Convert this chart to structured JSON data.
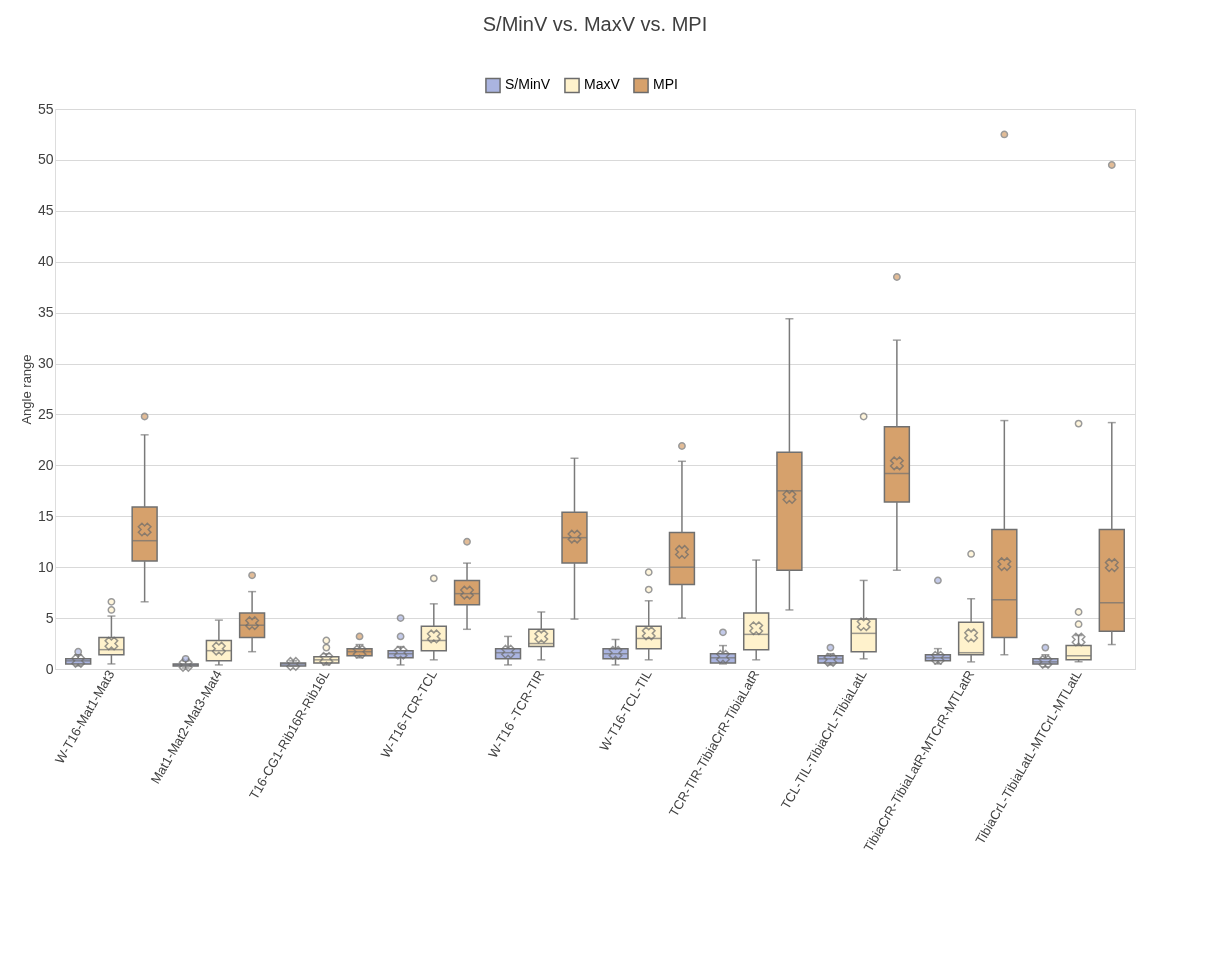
{
  "chart_data": {
    "type": "box",
    "title": "S/MinV vs. MaxV vs. MPI",
    "ylabel": "Angle range",
    "legend": "top",
    "grid": "y",
    "ylim": [
      0,
      55
    ],
    "yticks": [
      0,
      5,
      10,
      15,
      20,
      25,
      30,
      35,
      40,
      45,
      50,
      55
    ],
    "categories": [
      "W-T16-Mat1-Mat3",
      "Mat1-Mat2-Mat3-Mat4",
      "T16-CG1-Rib16R-Rib16L",
      "W-T16-TCR-TCL",
      "W-T16 -TCR-TIR",
      "W-T16-TCL-TIL",
      "TCR-TIR-TibiaCrR-TibiaLatR",
      "TCL-TIL-TibiaCrL-TibiaLatL",
      "TibiaCrR-TibiaLatR-MTCrR-MTLatR",
      "TibiaCrL-TibiaLatL-MTCrL-MTLatL"
    ],
    "series": [
      {
        "name": "S/MinV",
        "color": "#aab4e0",
        "boxes": [
          {
            "low": 0.3,
            "q1": 0.5,
            "median": 0.8,
            "q3": 1.0,
            "high": 1.4,
            "mean": 0.8,
            "outliers": [
              1.7
            ]
          },
          {
            "low": 0.1,
            "q1": 0.3,
            "median": 0.4,
            "q3": 0.5,
            "high": 0.8,
            "mean": 0.4,
            "outliers": [
              1.0
            ]
          },
          {
            "low": 0.3,
            "q1": 0.3,
            "median": 0.5,
            "q3": 0.6,
            "high": 0.8,
            "mean": 0.5
          },
          {
            "low": 0.4,
            "q1": 1.1,
            "median": 1.5,
            "q3": 1.8,
            "high": 2.2,
            "mean": 1.6,
            "outliers": [
              3.2,
              5.0
            ]
          },
          {
            "low": 0.4,
            "q1": 1.0,
            "median": 1.6,
            "q3": 2.0,
            "high": 3.2,
            "mean": 1.7
          },
          {
            "low": 0.4,
            "q1": 1.0,
            "median": 1.5,
            "q3": 2.0,
            "high": 2.9,
            "mean": 1.6
          },
          {
            "low": 0.5,
            "q1": 0.6,
            "median": 1.1,
            "q3": 1.5,
            "high": 2.3,
            "mean": 1.2,
            "outliers": [
              3.6
            ]
          },
          {
            "low": 0.4,
            "q1": 0.6,
            "median": 1.0,
            "q3": 1.3,
            "high": 1.5,
            "mean": 0.9,
            "outliers": [
              2.1
            ]
          },
          {
            "low": 0.5,
            "q1": 0.8,
            "median": 1.1,
            "q3": 1.4,
            "high": 2.0,
            "mean": 1.1,
            "outliers": [
              8.7
            ]
          },
          {
            "low": 0.2,
            "q1": 0.5,
            "median": 0.7,
            "q3": 1.0,
            "high": 1.4,
            "mean": 0.7,
            "outliers": [
              2.1
            ]
          }
        ]
      },
      {
        "name": "MaxV",
        "color": "#fff2cc",
        "boxes": [
          {
            "low": 0.5,
            "q1": 1.4,
            "median": 1.9,
            "q3": 3.1,
            "high": 5.2,
            "mean": 2.5,
            "outliers": [
              5.8,
              6.6
            ]
          },
          {
            "low": 0.4,
            "q1": 0.8,
            "median": 1.8,
            "q3": 2.8,
            "high": 4.8,
            "mean": 2.0
          },
          {
            "low": 0.4,
            "q1": 0.6,
            "median": 0.9,
            "q3": 1.2,
            "high": 1.5,
            "mean": 1.0,
            "outliers": [
              2.1,
              2.8
            ]
          },
          {
            "low": 0.9,
            "q1": 1.8,
            "median": 2.8,
            "q3": 4.2,
            "high": 6.4,
            "mean": 3.2,
            "outliers": [
              8.9
            ]
          },
          {
            "low": 0.9,
            "q1": 2.2,
            "median": 2.5,
            "q3": 3.9,
            "high": 5.6,
            "mean": 3.2
          },
          {
            "low": 0.9,
            "q1": 2.0,
            "median": 3.0,
            "q3": 4.2,
            "high": 6.7,
            "mean": 3.5,
            "outliers": [
              7.8,
              9.5
            ]
          },
          {
            "low": 0.9,
            "q1": 1.9,
            "median": 3.4,
            "q3": 5.5,
            "high": 10.7,
            "mean": 4.0
          },
          {
            "low": 1.0,
            "q1": 1.7,
            "median": 3.5,
            "q3": 4.9,
            "high": 8.7,
            "mean": 4.4,
            "outliers": [
              24.8
            ]
          },
          {
            "low": 0.7,
            "q1": 1.4,
            "median": 1.6,
            "q3": 4.6,
            "high": 6.9,
            "mean": 3.3,
            "outliers": [
              11.3
            ]
          },
          {
            "low": 0.7,
            "q1": 0.9,
            "median": 1.3,
            "q3": 2.3,
            "high": 3.3,
            "mean": 2.9,
            "outliers": [
              4.4,
              5.6,
              24.1
            ]
          }
        ]
      },
      {
        "name": "MPI",
        "color": "#d6a16c",
        "boxes": [
          {
            "low": 6.6,
            "q1": 10.6,
            "median": 12.6,
            "q3": 15.9,
            "high": 23.0,
            "mean": 13.7,
            "outliers": [
              24.8
            ]
          },
          {
            "low": 1.7,
            "q1": 3.1,
            "median": 4.3,
            "q3": 5.5,
            "high": 7.6,
            "mean": 4.5,
            "outliers": [
              9.2
            ]
          },
          {
            "low": 1.1,
            "q1": 1.3,
            "median": 1.7,
            "q3": 2.0,
            "high": 2.4,
            "mean": 1.7,
            "outliers": [
              3.2
            ]
          },
          {
            "low": 3.9,
            "q1": 6.3,
            "median": 7.4,
            "q3": 8.7,
            "high": 10.4,
            "mean": 7.5,
            "outliers": [
              12.5
            ]
          },
          {
            "low": 4.9,
            "q1": 10.4,
            "median": 12.9,
            "q3": 15.4,
            "high": 20.7,
            "mean": 13.0
          },
          {
            "low": 5.0,
            "q1": 8.3,
            "median": 10.0,
            "q3": 13.4,
            "high": 20.4,
            "mean": 11.5,
            "outliers": [
              21.9
            ]
          },
          {
            "low": 5.8,
            "q1": 9.7,
            "median": 17.5,
            "q3": 21.3,
            "high": 34.4,
            "mean": 16.9
          },
          {
            "low": 9.7,
            "q1": 16.4,
            "median": 19.2,
            "q3": 23.8,
            "high": 32.3,
            "mean": 20.2,
            "outliers": [
              38.5
            ]
          },
          {
            "low": 1.4,
            "q1": 3.1,
            "median": 6.8,
            "q3": 13.7,
            "high": 24.4,
            "mean": 10.3,
            "outliers": [
              52.5
            ]
          },
          {
            "low": 2.4,
            "q1": 3.7,
            "median": 6.5,
            "q3": 13.7,
            "high": 24.2,
            "mean": 10.2,
            "outliers": [
              49.5
            ]
          }
        ]
      }
    ]
  }
}
